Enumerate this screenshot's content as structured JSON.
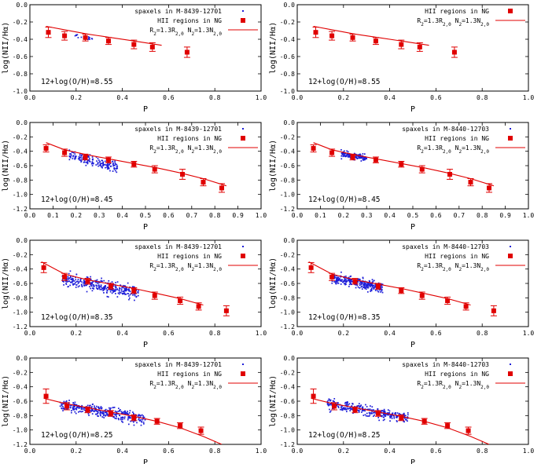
{
  "figure": {
    "panel_columns": 2,
    "panel_rows": 4
  },
  "chart_data": [
    {
      "type": "scatter",
      "panel": "row1-left",
      "xlabel": "P",
      "ylabel": "log(NII/Hα)",
      "xlim": [
        0.0,
        1.0
      ],
      "ylim": [
        -1.0,
        0.0
      ],
      "xticks": [
        0.0,
        0.2,
        0.4,
        0.6,
        0.8,
        1.0
      ],
      "yticks": [
        0.0,
        -0.2,
        -0.4,
        -0.6,
        -0.8,
        -1.0
      ],
      "annotation": "12+log(O/H)=8.55",
      "legend": {
        "position": "top-right",
        "spaxels_label": "spaxels in M-8439-12701",
        "hii_label": "HII regions in NG",
        "model_label": "R2=1.3R2,0 N2=1.3N2,0"
      },
      "series": [
        {
          "name": "HII regions in NG",
          "kind": "errorbar",
          "color": "#e00000",
          "x": [
            0.08,
            0.15,
            0.24,
            0.34,
            0.45,
            0.53,
            0.68
          ],
          "y": [
            -0.32,
            -0.36,
            -0.38,
            -0.42,
            -0.46,
            -0.49,
            -0.55
          ],
          "err": [
            0.06,
            0.05,
            0.04,
            0.04,
            0.05,
            0.05,
            0.06
          ]
        },
        {
          "name": "R2=1.3R2,0 N2=1.3N2,0",
          "kind": "line",
          "color": "#e00000",
          "x": [
            0.07,
            0.15,
            0.25,
            0.35,
            0.45,
            0.57
          ],
          "y": [
            -0.25,
            -0.29,
            -0.34,
            -0.38,
            -0.42,
            -0.47
          ]
        },
        {
          "name": "spaxels in M-8439-12701",
          "kind": "scatter",
          "color": "#1c1cd8",
          "cloud": {
            "x_range": [
              0.18,
              0.27
            ],
            "slope": -0.45,
            "intercept": -0.27,
            "sigma": 0.012,
            "count": 14
          }
        }
      ]
    },
    {
      "type": "scatter",
      "panel": "row1-right",
      "xlabel": "P",
      "ylabel": "log(NII/Hα)",
      "xlim": [
        0.0,
        1.0
      ],
      "ylim": [
        -1.0,
        0.0
      ],
      "xticks": [
        0.0,
        0.2,
        0.4,
        0.6,
        0.8,
        1.0
      ],
      "yticks": [
        0.0,
        -0.2,
        -0.4,
        -0.6,
        -0.8,
        -1.0
      ],
      "annotation": "12+log(O/H)=8.55",
      "legend": {
        "position": "top-right",
        "spaxels_label": "",
        "hii_label": "HII regions in NG",
        "model_label": "R2=1.3R2,0 N2=1.3N2,0"
      },
      "series": [
        {
          "name": "HII regions in NG",
          "kind": "errorbar",
          "color": "#e00000",
          "x": [
            0.08,
            0.15,
            0.24,
            0.34,
            0.45,
            0.53,
            0.68
          ],
          "y": [
            -0.32,
            -0.36,
            -0.38,
            -0.42,
            -0.46,
            -0.49,
            -0.55
          ],
          "err": [
            0.06,
            0.05,
            0.04,
            0.04,
            0.05,
            0.05,
            0.06
          ]
        },
        {
          "name": "R2=1.3R2,0 N2=1.3N2,0",
          "kind": "line",
          "color": "#e00000",
          "x": [
            0.07,
            0.15,
            0.25,
            0.35,
            0.45,
            0.57
          ],
          "y": [
            -0.25,
            -0.29,
            -0.34,
            -0.38,
            -0.42,
            -0.47
          ]
        }
      ]
    },
    {
      "type": "scatter",
      "panel": "row2-left",
      "xlabel": "P",
      "ylabel": "log(NII/Hα)",
      "xlim": [
        0.0,
        1.0
      ],
      "ylim": [
        -1.2,
        0.0
      ],
      "xticks": [
        0.0,
        0.1,
        0.2,
        0.3,
        0.4,
        0.5,
        0.6,
        0.7,
        0.8,
        0.9,
        1.0
      ],
      "yticks": [
        0.0,
        -0.2,
        -0.4,
        -0.6,
        -0.8,
        -1.0,
        -1.2
      ],
      "annotation": "12+log(O/H)=8.45",
      "legend": {
        "position": "top-right",
        "spaxels_label": "spaxels in M-8439-12701",
        "hii_label": "HII regions in NG",
        "model_label": "R2=1.3R2,0 N2=1.3N2,0"
      },
      "series": [
        {
          "name": "HII regions in NG",
          "kind": "errorbar",
          "color": "#e00000",
          "x": [
            0.07,
            0.15,
            0.24,
            0.34,
            0.45,
            0.54,
            0.66,
            0.75,
            0.83
          ],
          "y": [
            -0.36,
            -0.42,
            -0.48,
            -0.52,
            -0.58,
            -0.65,
            -0.72,
            -0.83,
            -0.91
          ],
          "err": [
            0.05,
            0.05,
            0.04,
            0.04,
            0.04,
            0.05,
            0.07,
            0.05,
            0.06
          ]
        },
        {
          "name": "R2=1.3R2,0 N2=1.3N2,0",
          "kind": "line",
          "color": "#e00000",
          "x": [
            0.07,
            0.15,
            0.25,
            0.35,
            0.45,
            0.55,
            0.65,
            0.75,
            0.85
          ],
          "y": [
            -0.28,
            -0.38,
            -0.45,
            -0.51,
            -0.57,
            -0.63,
            -0.7,
            -0.78,
            -0.88
          ]
        },
        {
          "name": "spaxels in M-8439-12701",
          "kind": "scatter",
          "color": "#1c1cd8",
          "cloud": {
            "x_range": [
              0.17,
              0.38
            ],
            "slope": -0.75,
            "intercept": -0.33,
            "sigma": 0.035,
            "count": 170
          }
        }
      ]
    },
    {
      "type": "scatter",
      "panel": "row2-right",
      "xlabel": "P",
      "ylabel": "log(NII/Hα)",
      "xlim": [
        0.0,
        1.0
      ],
      "ylim": [
        -1.2,
        0.0
      ],
      "xticks": [
        0.0,
        0.1,
        0.2,
        0.3,
        0.4,
        0.5,
        0.6,
        0.7,
        0.8,
        0.9,
        1.0
      ],
      "yticks": [
        0.0,
        -0.2,
        -0.4,
        -0.6,
        -0.8,
        -1.0,
        -1.2
      ],
      "annotation": "12+log(O/H)=8.45",
      "legend": {
        "position": "top-right",
        "spaxels_label": "spaxels in M-8440-12703",
        "hii_label": "HII regions in NG",
        "model_label": "R2=1.3R2,0 N2=1.3N2,0"
      },
      "series": [
        {
          "name": "HII regions in NG",
          "kind": "errorbar",
          "color": "#e00000",
          "x": [
            0.07,
            0.15,
            0.24,
            0.34,
            0.45,
            0.54,
            0.66,
            0.75,
            0.83
          ],
          "y": [
            -0.36,
            -0.42,
            -0.48,
            -0.52,
            -0.58,
            -0.65,
            -0.72,
            -0.83,
            -0.91
          ],
          "err": [
            0.05,
            0.05,
            0.04,
            0.04,
            0.04,
            0.05,
            0.07,
            0.05,
            0.06
          ]
        },
        {
          "name": "R2=1.3R2,0 N2=1.3N2,0",
          "kind": "line",
          "color": "#e00000",
          "x": [
            0.07,
            0.15,
            0.25,
            0.35,
            0.45,
            0.55,
            0.65,
            0.75,
            0.85
          ],
          "y": [
            -0.28,
            -0.38,
            -0.45,
            -0.51,
            -0.57,
            -0.63,
            -0.7,
            -0.78,
            -0.88
          ]
        },
        {
          "name": "spaxels in M-8440-12703",
          "kind": "scatter",
          "color": "#1c1cd8",
          "cloud": {
            "x_range": [
              0.19,
              0.3
            ],
            "slope": -0.6,
            "intercept": -0.32,
            "sigma": 0.02,
            "count": 130
          }
        }
      ]
    },
    {
      "type": "scatter",
      "panel": "row3-left",
      "xlabel": "P",
      "ylabel": "log(NII/Hα)",
      "xlim": [
        0.0,
        1.0
      ],
      "ylim": [
        -1.2,
        0.0
      ],
      "xticks": [
        0.0,
        0.2,
        0.4,
        0.6,
        0.8,
        1.0
      ],
      "yticks": [
        0.0,
        -0.2,
        -0.4,
        -0.6,
        -0.8,
        -1.0,
        -1.2
      ],
      "annotation": "12+log(O/H)=8.35",
      "legend": {
        "position": "top-right",
        "spaxels_label": "spaxels in M-8439-12701",
        "hii_label": "HII regions in NG",
        "model_label": "R2=1.3R2,0 N2=1.3N2,0"
      },
      "series": [
        {
          "name": "HII regions in NG",
          "kind": "errorbar",
          "color": "#e00000",
          "x": [
            0.06,
            0.15,
            0.25,
            0.35,
            0.45,
            0.54,
            0.65,
            0.73,
            0.85
          ],
          "y": [
            -0.38,
            -0.51,
            -0.57,
            -0.64,
            -0.7,
            -0.77,
            -0.84,
            -0.92,
            -0.98
          ],
          "err": [
            0.07,
            0.05,
            0.04,
            0.04,
            0.04,
            0.05,
            0.05,
            0.05,
            0.07
          ]
        },
        {
          "name": "R2=1.3R2,0 N2=1.3N2,0",
          "kind": "line",
          "color": "#e00000",
          "x": [
            0.05,
            0.15,
            0.25,
            0.35,
            0.45,
            0.55,
            0.65,
            0.75
          ],
          "y": [
            -0.3,
            -0.47,
            -0.55,
            -0.61,
            -0.67,
            -0.74,
            -0.81,
            -0.9
          ]
        },
        {
          "name": "spaxels in M-8439-12701",
          "kind": "scatter",
          "color": "#1c1cd8",
          "cloud": {
            "x_range": [
              0.14,
              0.47
            ],
            "slope": -0.55,
            "intercept": -0.47,
            "sigma": 0.045,
            "count": 320
          }
        }
      ]
    },
    {
      "type": "scatter",
      "panel": "row3-right",
      "xlabel": "P",
      "ylabel": "log(NII/Hα)",
      "xlim": [
        0.0,
        1.0
      ],
      "ylim": [
        -1.2,
        0.0
      ],
      "xticks": [
        0.0,
        0.2,
        0.4,
        0.6,
        0.8,
        1.0
      ],
      "yticks": [
        0.0,
        -0.2,
        -0.4,
        -0.6,
        -0.8,
        -1.0,
        -1.2
      ],
      "annotation": "12+log(O/H)=8.35",
      "legend": {
        "position": "top-right",
        "spaxels_label": "spaxels in M-8440-12703",
        "hii_label": "HII regions in NG",
        "model_label": "R2=1.3R2,0 N2=1.3N2,0"
      },
      "series": [
        {
          "name": "HII regions in NG",
          "kind": "errorbar",
          "color": "#e00000",
          "x": [
            0.06,
            0.15,
            0.25,
            0.35,
            0.45,
            0.54,
            0.65,
            0.73,
            0.85
          ],
          "y": [
            -0.38,
            -0.51,
            -0.57,
            -0.64,
            -0.7,
            -0.77,
            -0.84,
            -0.92,
            -0.98
          ],
          "err": [
            0.07,
            0.05,
            0.04,
            0.04,
            0.04,
            0.05,
            0.05,
            0.05,
            0.07
          ]
        },
        {
          "name": "R2=1.3R2,0 N2=1.3N2,0",
          "kind": "line",
          "color": "#e00000",
          "x": [
            0.05,
            0.15,
            0.25,
            0.35,
            0.45,
            0.55,
            0.65,
            0.75
          ],
          "y": [
            -0.3,
            -0.47,
            -0.55,
            -0.61,
            -0.67,
            -0.74,
            -0.81,
            -0.9
          ]
        },
        {
          "name": "spaxels in M-8440-12703",
          "kind": "scatter",
          "color": "#1c1cd8",
          "cloud": {
            "x_range": [
              0.15,
              0.37
            ],
            "slope": -0.55,
            "intercept": -0.45,
            "sigma": 0.035,
            "count": 300
          }
        }
      ]
    },
    {
      "type": "scatter",
      "panel": "row4-left",
      "xlabel": "P",
      "ylabel": "log(NII/Hα)",
      "xlim": [
        0.0,
        1.0
      ],
      "ylim": [
        -1.2,
        0.0
      ],
      "xticks": [
        0.0,
        0.2,
        0.4,
        0.6,
        0.8,
        1.0
      ],
      "yticks": [
        0.0,
        -0.2,
        -0.4,
        -0.6,
        -0.8,
        -1.0,
        -1.2
      ],
      "annotation": "12+log(O/H)=8.25",
      "legend": {
        "position": "top-right",
        "spaxels_label": "spaxels in M-8439-12701",
        "hii_label": "HII regions in NG",
        "model_label": "R2=1.3R2,0 N2=1.3N2,0"
      },
      "series": [
        {
          "name": "HII regions in NG",
          "kind": "errorbar",
          "color": "#e00000",
          "x": [
            0.07,
            0.16,
            0.25,
            0.35,
            0.45,
            0.55,
            0.65,
            0.74
          ],
          "y": [
            -0.53,
            -0.67,
            -0.72,
            -0.77,
            -0.83,
            -0.88,
            -0.94,
            -1.01
          ],
          "err": [
            0.1,
            0.05,
            0.04,
            0.04,
            0.04,
            0.04,
            0.04,
            0.05
          ]
        },
        {
          "name": "R2=1.3R2,0 N2=1.3N2,0",
          "kind": "line",
          "color": "#e00000",
          "x": [
            0.06,
            0.15,
            0.25,
            0.35,
            0.45,
            0.55,
            0.65,
            0.75,
            0.83
          ],
          "y": [
            -0.56,
            -0.63,
            -0.69,
            -0.75,
            -0.81,
            -0.88,
            -0.97,
            -1.09,
            -1.2
          ]
        },
        {
          "name": "spaxels in M-8439-12701",
          "kind": "scatter",
          "color": "#1c1cd8",
          "cloud": {
            "x_range": [
              0.13,
              0.5
            ],
            "slope": -0.55,
            "intercept": -0.58,
            "sigma": 0.04,
            "count": 320
          }
        }
      ]
    },
    {
      "type": "scatter",
      "panel": "row4-right",
      "xlabel": "P",
      "ylabel": "log(NII/Hα)",
      "xlim": [
        0.0,
        1.0
      ],
      "ylim": [
        -1.2,
        0.0
      ],
      "xticks": [
        0.0,
        0.2,
        0.4,
        0.6,
        0.8,
        1.0
      ],
      "yticks": [
        0.0,
        -0.2,
        -0.4,
        -0.6,
        -0.8,
        -1.0,
        -1.2
      ],
      "annotation": "12+log(O/H)=8.25",
      "legend": {
        "position": "top-right",
        "spaxels_label": "spaxels in M-8440-12703",
        "hii_label": "HII regions in NG",
        "model_label": "R2=1.3R2,0 N2=1.3N2,0"
      },
      "series": [
        {
          "name": "HII regions in NG",
          "kind": "errorbar",
          "color": "#e00000",
          "x": [
            0.07,
            0.16,
            0.25,
            0.35,
            0.45,
            0.55,
            0.65,
            0.74
          ],
          "y": [
            -0.53,
            -0.67,
            -0.72,
            -0.77,
            -0.83,
            -0.88,
            -0.94,
            -1.01
          ],
          "err": [
            0.1,
            0.05,
            0.04,
            0.04,
            0.04,
            0.04,
            0.04,
            0.05
          ]
        },
        {
          "name": "R2=1.3R2,0 N2=1.3N2,0",
          "kind": "line",
          "color": "#e00000",
          "x": [
            0.06,
            0.15,
            0.25,
            0.35,
            0.45,
            0.55,
            0.65,
            0.75,
            0.83
          ],
          "y": [
            -0.56,
            -0.63,
            -0.69,
            -0.75,
            -0.81,
            -0.88,
            -0.97,
            -1.09,
            -1.2
          ]
        },
        {
          "name": "spaxels in M-8440-12703",
          "kind": "scatter",
          "color": "#1c1cd8",
          "cloud": {
            "x_range": [
              0.13,
              0.48
            ],
            "slope": -0.6,
            "intercept": -0.55,
            "sigma": 0.035,
            "count": 300
          }
        }
      ]
    }
  ]
}
